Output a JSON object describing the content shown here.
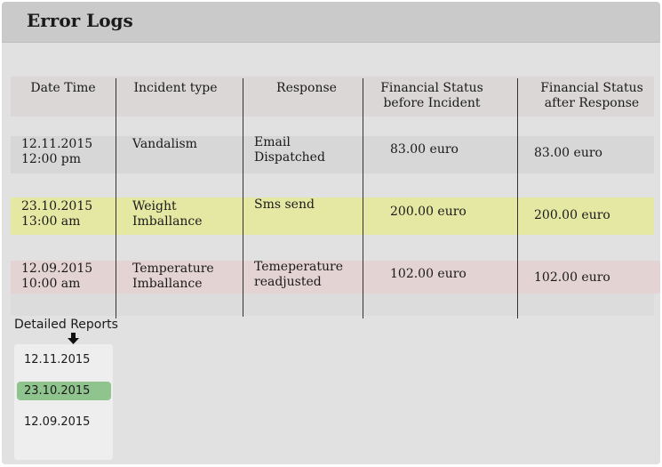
{
  "window": {
    "title": "Error Logs"
  },
  "table": {
    "columns": [
      "Date Time",
      "Incident type",
      "Response",
      "Financial Status\nbefore Incident",
      "Financial Status\nafter Response"
    ],
    "rows": [
      {
        "datetime": "12.11.2015\n12:00 pm",
        "incident": "Vandalism",
        "response": "Email\nDispatched",
        "before": "83.00 euro",
        "after": "83.00 euro"
      },
      {
        "datetime": "23.10.2015\n13:00 am",
        "incident": "Weight\nImballance",
        "response": "Sms send",
        "before": "200.00 euro",
        "after": "200.00 euro"
      },
      {
        "datetime": "12.09.2015\n10:00 am",
        "incident": "Temperature\nImballance",
        "response": "Temeperature\nreadjusted",
        "before": "102.00 euro",
        "after": "102.00 euro"
      }
    ],
    "row_colors": [
      "#d7d7d7",
      "#e5e8a3",
      "#e4d3d3"
    ]
  },
  "reports": {
    "label": "Detailed Reports",
    "arrow_icon": "down-arrow-icon",
    "items": [
      "12.11.2015",
      "23.10.2015",
      "12.09.2015"
    ],
    "selected": "23.10.2015",
    "selected_color": "#8fc48f"
  }
}
